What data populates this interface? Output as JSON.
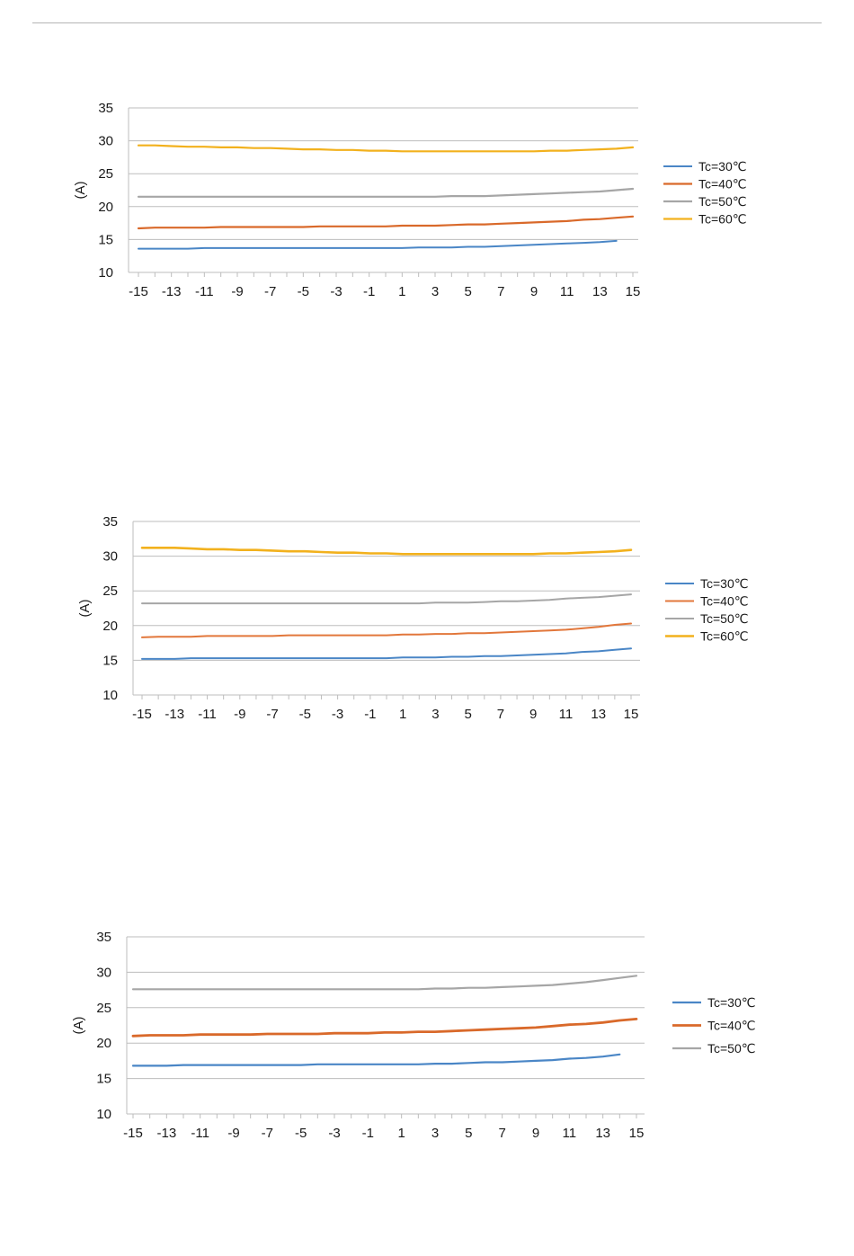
{
  "chart_data": [
    {
      "type": "line",
      "title": "",
      "xlabel": "",
      "ylabel": "(A)",
      "ylim": [
        10,
        35
      ],
      "yticks": [
        10,
        15,
        20,
        25,
        30,
        35
      ],
      "x": [
        -15,
        -14,
        -13,
        -12,
        -11,
        -10,
        -9,
        -8,
        -7,
        -6,
        -5,
        -4,
        -3,
        -2,
        -1,
        0,
        1,
        2,
        3,
        4,
        5,
        6,
        7,
        8,
        9,
        10,
        11,
        12,
        13,
        14,
        15
      ],
      "xticks": [
        -15,
        -13,
        -11,
        -9,
        -7,
        -5,
        -3,
        -1,
        1,
        3,
        5,
        7,
        9,
        11,
        13,
        15
      ],
      "grid": "horizontal",
      "legend_position": "right",
      "series": [
        {
          "name": "Tc=30℃",
          "color": "#4a86c6",
          "width": 2,
          "values": [
            13.6,
            13.6,
            13.6,
            13.6,
            13.7,
            13.7,
            13.7,
            13.7,
            13.7,
            13.7,
            13.7,
            13.7,
            13.7,
            13.7,
            13.7,
            13.7,
            13.7,
            13.8,
            13.8,
            13.8,
            13.9,
            13.9,
            14.0,
            14.1,
            14.2,
            14.3,
            14.4,
            14.5,
            14.6,
            14.8,
            null
          ]
        },
        {
          "name": "Tc=40℃",
          "color": "#d9692a",
          "width": 2.2,
          "values": [
            16.7,
            16.8,
            16.8,
            16.8,
            16.8,
            16.9,
            16.9,
            16.9,
            16.9,
            16.9,
            16.9,
            17.0,
            17.0,
            17.0,
            17.0,
            17.0,
            17.1,
            17.1,
            17.1,
            17.2,
            17.3,
            17.3,
            17.4,
            17.5,
            17.6,
            17.7,
            17.8,
            18.0,
            18.1,
            18.3,
            18.5
          ]
        },
        {
          "name": "Tc=50℃",
          "color": "#a6a6a6",
          "width": 2.2,
          "values": [
            21.5,
            21.5,
            21.5,
            21.5,
            21.5,
            21.5,
            21.5,
            21.5,
            21.5,
            21.5,
            21.5,
            21.5,
            21.5,
            21.5,
            21.5,
            21.5,
            21.5,
            21.5,
            21.5,
            21.6,
            21.6,
            21.6,
            21.7,
            21.8,
            21.9,
            22.0,
            22.1,
            22.2,
            22.3,
            22.5,
            22.7
          ]
        },
        {
          "name": "Tc=60℃",
          "color": "#f2b11d",
          "width": 2.2,
          "values": [
            29.3,
            29.3,
            29.2,
            29.1,
            29.1,
            29.0,
            29.0,
            28.9,
            28.9,
            28.8,
            28.7,
            28.7,
            28.6,
            28.6,
            28.5,
            28.5,
            28.4,
            28.4,
            28.4,
            28.4,
            28.4,
            28.4,
            28.4,
            28.4,
            28.4,
            28.5,
            28.5,
            28.6,
            28.7,
            28.8,
            29.0
          ]
        }
      ]
    },
    {
      "type": "line",
      "title": "",
      "xlabel": "",
      "ylabel": "(A)",
      "ylim": [
        10,
        35
      ],
      "yticks": [
        10,
        15,
        20,
        25,
        30,
        35
      ],
      "x": [
        -15,
        -14,
        -13,
        -12,
        -11,
        -10,
        -9,
        -8,
        -7,
        -6,
        -5,
        -4,
        -3,
        -2,
        -1,
        0,
        1,
        2,
        3,
        4,
        5,
        6,
        7,
        8,
        9,
        10,
        11,
        12,
        13,
        14,
        15
      ],
      "xticks": [
        -15,
        -13,
        -11,
        -9,
        -7,
        -5,
        -3,
        -1,
        1,
        3,
        5,
        7,
        9,
        11,
        13,
        15
      ],
      "grid": "horizontal",
      "legend_position": "right",
      "series": [
        {
          "name": "Tc=30℃",
          "color": "#4a86c6",
          "width": 2,
          "values": [
            15.2,
            15.2,
            15.2,
            15.3,
            15.3,
            15.3,
            15.3,
            15.3,
            15.3,
            15.3,
            15.3,
            15.3,
            15.3,
            15.3,
            15.3,
            15.3,
            15.4,
            15.4,
            15.4,
            15.5,
            15.5,
            15.6,
            15.6,
            15.7,
            15.8,
            15.9,
            16.0,
            16.2,
            16.3,
            16.5,
            16.7
          ]
        },
        {
          "name": "Tc=40℃",
          "color": "#e2773b",
          "width": 2,
          "values": [
            18.3,
            18.4,
            18.4,
            18.4,
            18.5,
            18.5,
            18.5,
            18.5,
            18.5,
            18.6,
            18.6,
            18.6,
            18.6,
            18.6,
            18.6,
            18.6,
            18.7,
            18.7,
            18.8,
            18.8,
            18.9,
            18.9,
            19.0,
            19.1,
            19.2,
            19.3,
            19.4,
            19.6,
            19.8,
            20.1,
            20.3
          ]
        },
        {
          "name": "Tc=50℃",
          "color": "#a6a6a6",
          "width": 2,
          "values": [
            23.2,
            23.2,
            23.2,
            23.2,
            23.2,
            23.2,
            23.2,
            23.2,
            23.2,
            23.2,
            23.2,
            23.2,
            23.2,
            23.2,
            23.2,
            23.2,
            23.2,
            23.2,
            23.3,
            23.3,
            23.3,
            23.4,
            23.5,
            23.5,
            23.6,
            23.7,
            23.9,
            24.0,
            24.1,
            24.3,
            24.5
          ]
        },
        {
          "name": "Tc=60℃",
          "color": "#f2b11d",
          "width": 2.6,
          "values": [
            31.2,
            31.2,
            31.2,
            31.1,
            31.0,
            31.0,
            30.9,
            30.9,
            30.8,
            30.7,
            30.7,
            30.6,
            30.5,
            30.5,
            30.4,
            30.4,
            30.3,
            30.3,
            30.3,
            30.3,
            30.3,
            30.3,
            30.3,
            30.3,
            30.3,
            30.4,
            30.4,
            30.5,
            30.6,
            30.7,
            30.9
          ]
        }
      ]
    },
    {
      "type": "line",
      "title": "",
      "xlabel": "",
      "ylabel": "(A)",
      "ylim": [
        10,
        35
      ],
      "yticks": [
        10,
        15,
        20,
        25,
        30,
        35
      ],
      "x": [
        -15,
        -14,
        -13,
        -12,
        -11,
        -10,
        -9,
        -8,
        -7,
        -6,
        -5,
        -4,
        -3,
        -2,
        -1,
        0,
        1,
        2,
        3,
        4,
        5,
        6,
        7,
        8,
        9,
        10,
        11,
        12,
        13,
        14,
        15
      ],
      "xticks": [
        -15,
        -13,
        -11,
        -9,
        -7,
        -5,
        -3,
        -1,
        1,
        3,
        5,
        7,
        9,
        11,
        13,
        15
      ],
      "grid": "horizontal",
      "legend_position": "right",
      "series": [
        {
          "name": "Tc=30℃",
          "color": "#4a86c6",
          "width": 2.2,
          "values": [
            16.8,
            16.8,
            16.8,
            16.9,
            16.9,
            16.9,
            16.9,
            16.9,
            16.9,
            16.9,
            16.9,
            17.0,
            17.0,
            17.0,
            17.0,
            17.0,
            17.0,
            17.0,
            17.1,
            17.1,
            17.2,
            17.3,
            17.3,
            17.4,
            17.5,
            17.6,
            17.8,
            17.9,
            18.1,
            18.4,
            null
          ]
        },
        {
          "name": "Tc=40℃",
          "color": "#d9692a",
          "width": 2.8,
          "values": [
            21.0,
            21.1,
            21.1,
            21.1,
            21.2,
            21.2,
            21.2,
            21.2,
            21.3,
            21.3,
            21.3,
            21.3,
            21.4,
            21.4,
            21.4,
            21.5,
            21.5,
            21.6,
            21.6,
            21.7,
            21.8,
            21.9,
            22.0,
            22.1,
            22.2,
            22.4,
            22.6,
            22.7,
            22.9,
            23.2,
            23.4
          ]
        },
        {
          "name": "Tc=50℃",
          "color": "#a6a6a6",
          "width": 2.2,
          "values": [
            27.6,
            27.6,
            27.6,
            27.6,
            27.6,
            27.6,
            27.6,
            27.6,
            27.6,
            27.6,
            27.6,
            27.6,
            27.6,
            27.6,
            27.6,
            27.6,
            27.6,
            27.6,
            27.7,
            27.7,
            27.8,
            27.8,
            27.9,
            28.0,
            28.1,
            28.2,
            28.4,
            28.6,
            28.9,
            29.2,
            29.5
          ]
        }
      ]
    }
  ]
}
